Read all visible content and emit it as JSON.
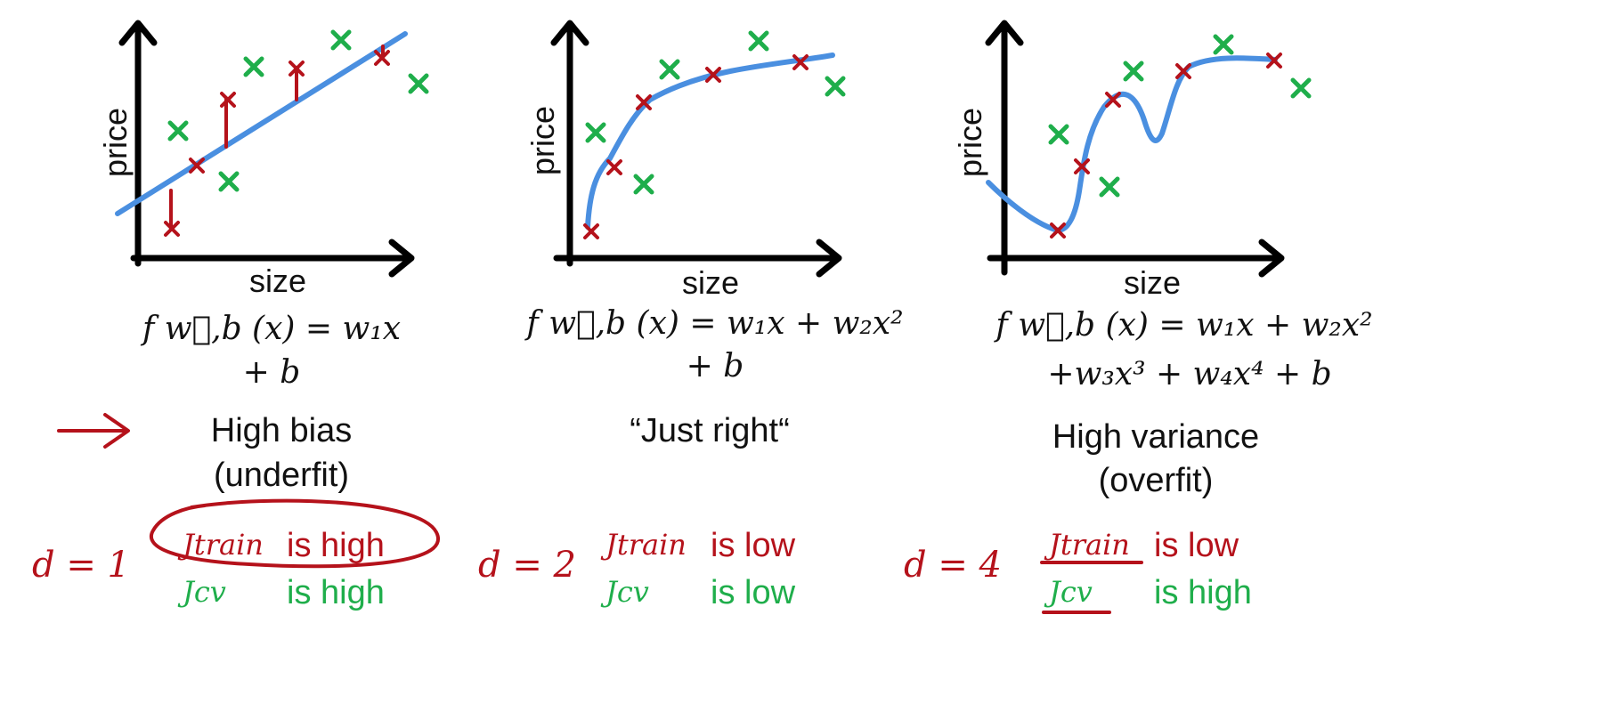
{
  "colors": {
    "axis": "#000000",
    "curve": "#4a8fe0",
    "train": "#b5121b",
    "cv": "#1fae4b",
    "text": "#111111"
  },
  "panels": [
    {
      "ylabel": "price",
      "xlabel": "size",
      "formula_line1": "f w⃗,b (x) = w₁x",
      "formula_line2": "+ b",
      "fit_label_line1": "High bias",
      "fit_label_line2": "(underfit)",
      "degree": "d = 1",
      "jtrain": "Jtrain",
      "jtrain_status": "is high",
      "jcv": "Jcv",
      "jcv_status": "is high"
    },
    {
      "ylabel": "price",
      "xlabel": "size",
      "formula_line1": "f w⃗,b (x) = w₁x + w₂x²",
      "formula_line2": "+ b",
      "fit_label_line1": "“Just right“",
      "fit_label_line2": "",
      "degree": "d = 2",
      "jtrain": "Jtrain",
      "jtrain_status": "is low",
      "jcv": "Jcv",
      "jcv_status": "is low"
    },
    {
      "ylabel": "price",
      "xlabel": "size",
      "formula_line1": "f w⃗,b (x) = w₁x + w₂x²",
      "formula_line2": "+w₃x³ + w₄x⁴ + b",
      "fit_label_line1": "High variance",
      "fit_label_line2": "(overfit)",
      "degree": "d = 4",
      "jtrain": "Jtrain",
      "jtrain_status": "is low",
      "jcv": "Jcv",
      "jcv_status": "is high"
    }
  ]
}
